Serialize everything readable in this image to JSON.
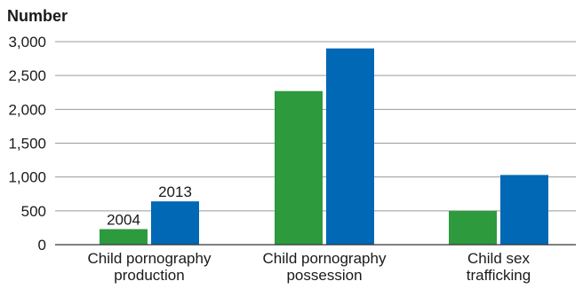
{
  "chart_data": {
    "type": "bar",
    "title": "",
    "ylabel": "Number",
    "xlabel": "",
    "ylim": [
      0,
      3000
    ],
    "yticks": [
      0,
      500,
      1000,
      1500,
      2000,
      2500,
      3000
    ],
    "ytick_labels": [
      "0",
      "500",
      "1,000",
      "1,500",
      "2,000",
      "2,500",
      "3,000"
    ],
    "grid": true,
    "legend": "none",
    "categories": [
      [
        "Child pornography",
        "production"
      ],
      [
        "Child pornography",
        "possession"
      ],
      [
        "Child sex",
        "trafficking"
      ]
    ],
    "series": [
      {
        "name": "2004",
        "color": "#2e9a3e",
        "values": [
          230,
          2270,
          500
        ]
      },
      {
        "name": "2013",
        "color": "#0068b4",
        "values": [
          640,
          2900,
          1030
        ]
      }
    ],
    "annotations": [
      {
        "text": "2004",
        "series": 0,
        "category": 0
      },
      {
        "text": "2013",
        "series": 1,
        "category": 0
      }
    ]
  }
}
